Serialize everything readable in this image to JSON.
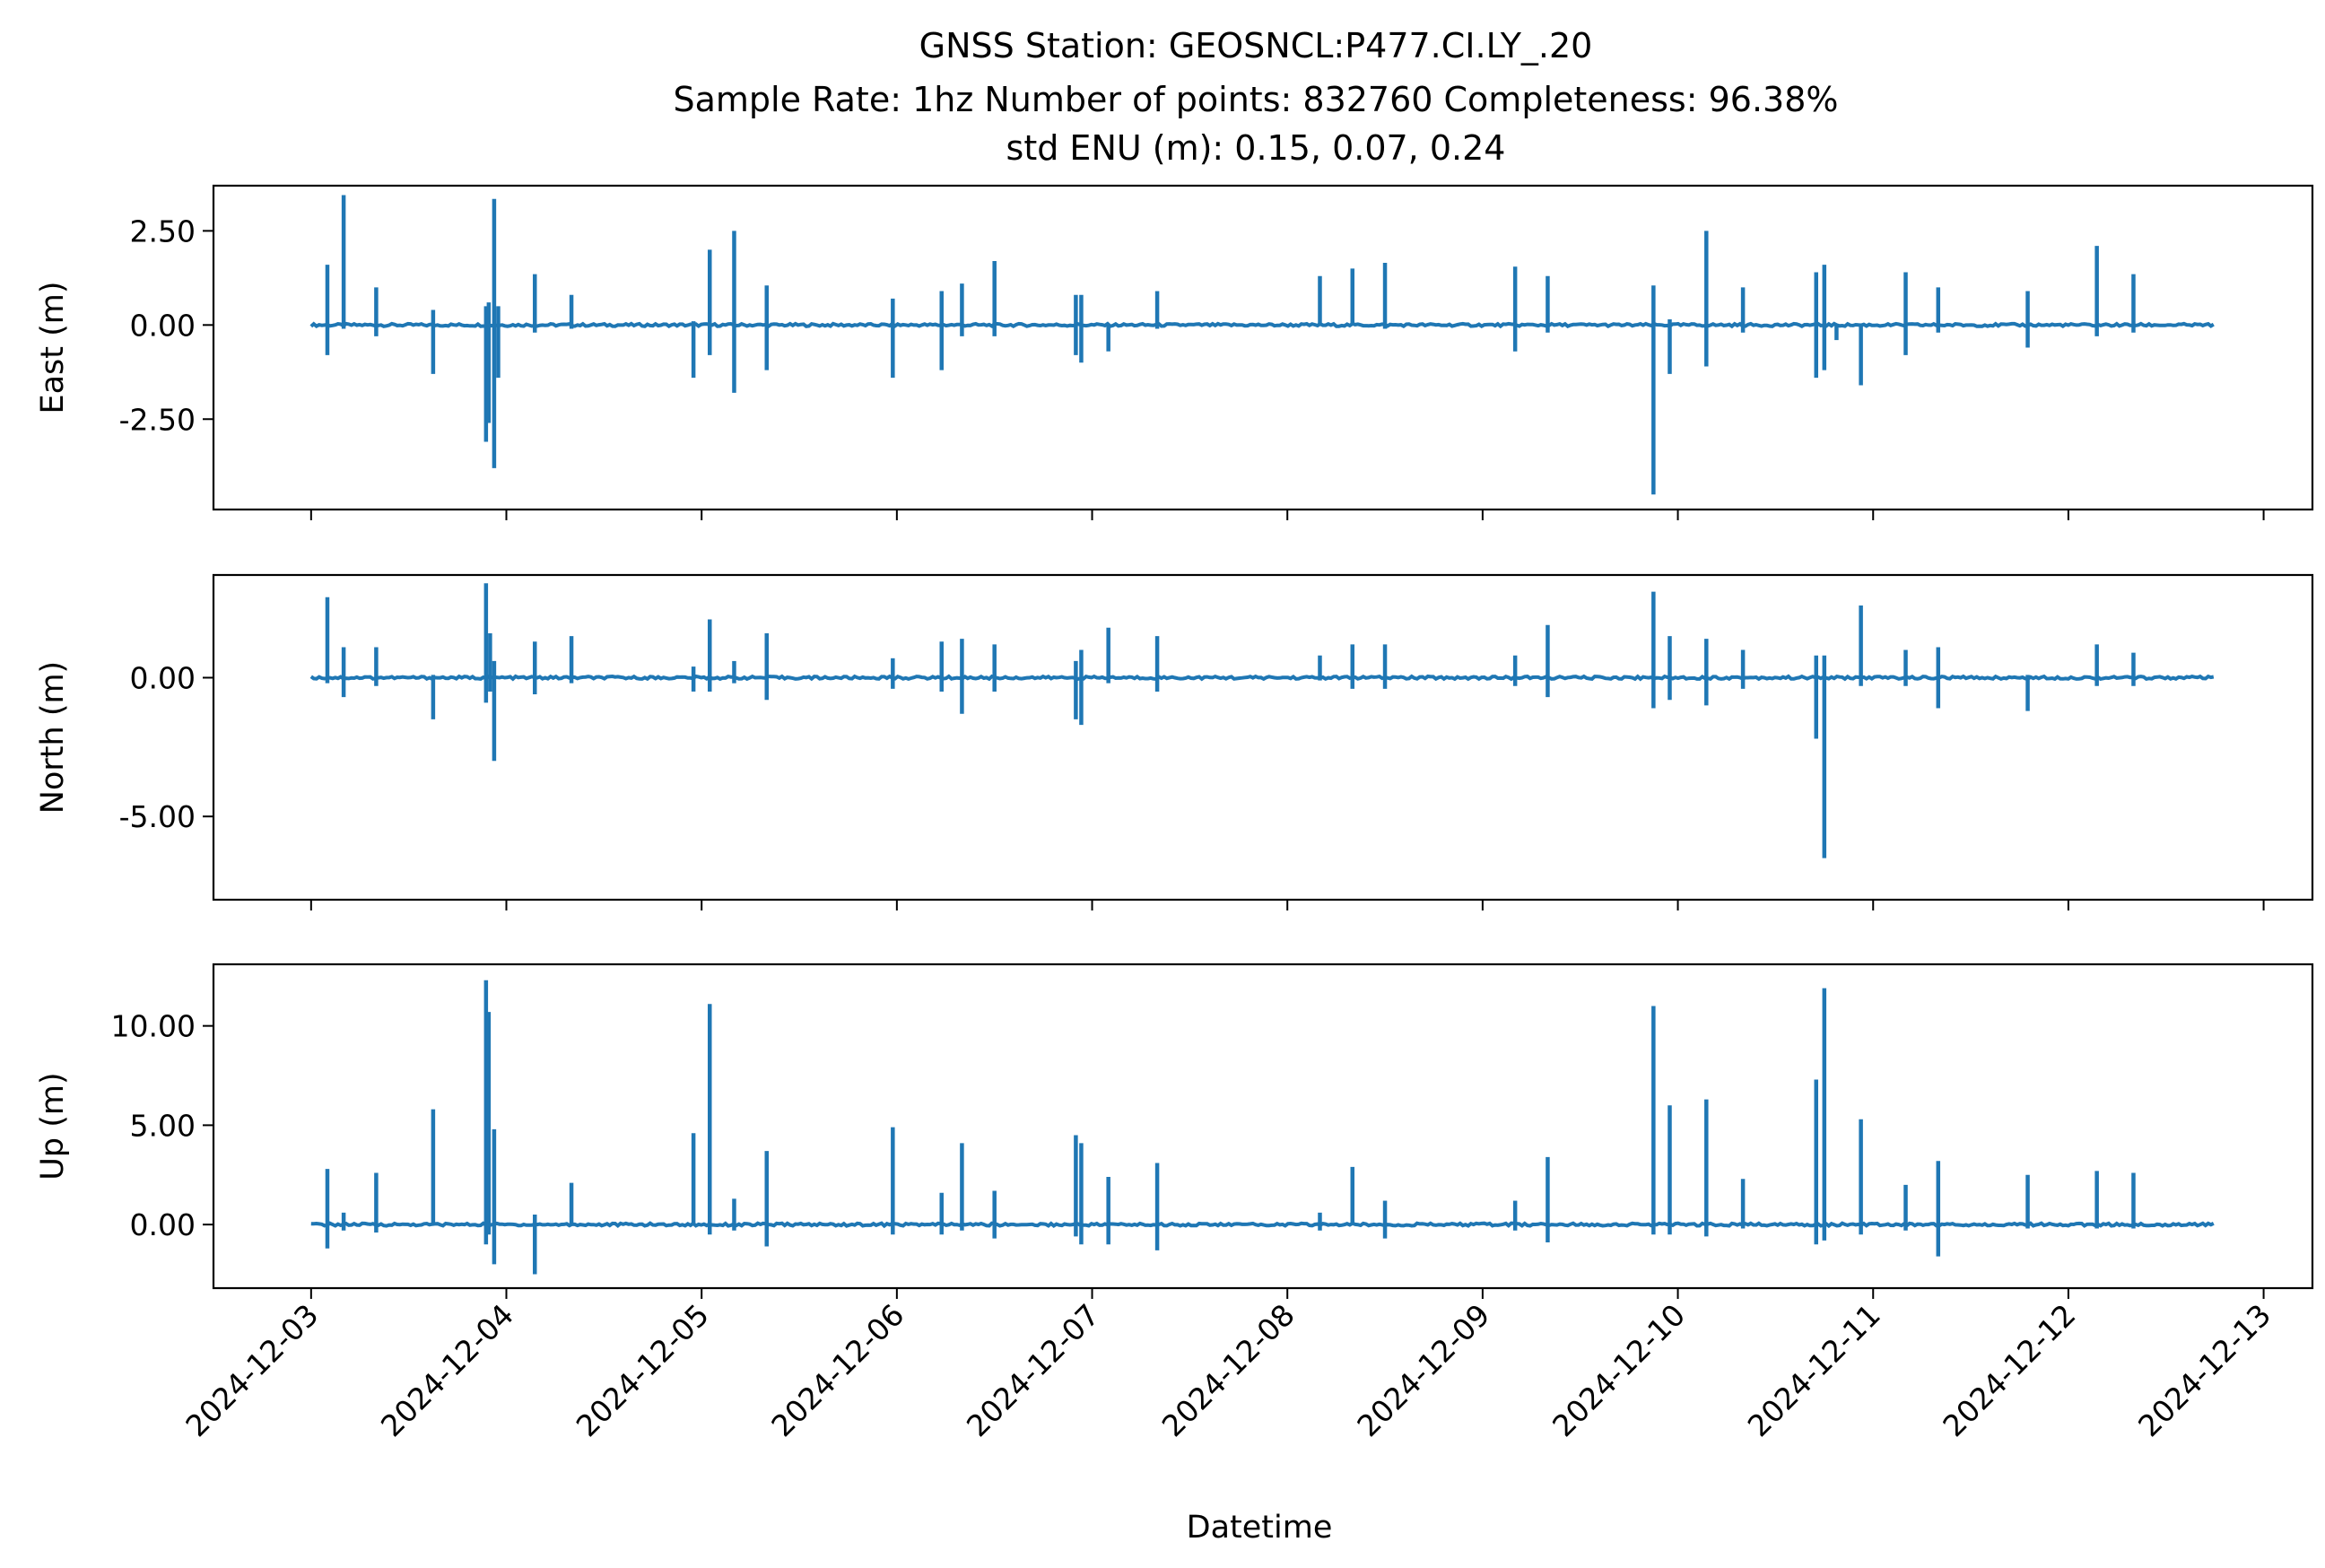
{
  "title_lines": [
    "GNSS Station: GEOSNCL:P477.CI.LY_.20",
    "Sample Rate: 1hz   Number of points: 832760    Completeness:  96.38%",
    "std ENU (m):  0.15, 0.07, 0.24"
  ],
  "colors": {
    "series": "#1f77b4",
    "axes": "#000000",
    "background": "#ffffff"
  },
  "chart_data": {
    "type": "line",
    "xlabel": "Datetime",
    "x_ticks": [
      "2024-12-03",
      "2024-12-04",
      "2024-12-05",
      "2024-12-06",
      "2024-12-07",
      "2024-12-08",
      "2024-12-09",
      "2024-12-10",
      "2024-12-11",
      "2024-12-12",
      "2024-12-13"
    ],
    "xlim": [
      "2024-12-02T12:00",
      "2024-12-13T06:00"
    ],
    "data_range": [
      "2024-12-03T00:00",
      "2024-12-12T18:00"
    ],
    "grid": false,
    "legend": "none",
    "panels": [
      {
        "ylabel": "East (m)",
        "ylim": [
          -4.9,
          3.7
        ],
        "y_ticks": [
          2.5,
          0.0,
          -2.5
        ],
        "y_tick_labels": [
          "2.50",
          "0.00",
          "-2.50"
        ],
        "spikes": [
          [
            "2024-12-03T02:00",
            1.6,
            -0.8
          ],
          [
            "2024-12-03T04:00",
            3.45,
            -0.1
          ],
          [
            "2024-12-03T08:00",
            1.0,
            -0.3
          ],
          [
            "2024-12-03T15:00",
            0.4,
            -1.3
          ],
          [
            "2024-12-03T21:30",
            0.5,
            -3.1
          ],
          [
            "2024-12-03T21:50",
            0.6,
            -2.6
          ],
          [
            "2024-12-03T22:30",
            3.35,
            -3.8
          ],
          [
            "2024-12-03T23:00",
            0.5,
            -1.4
          ],
          [
            "2024-12-04T03:30",
            1.35,
            -0.2
          ],
          [
            "2024-12-04T08:00",
            0.8,
            -0.1
          ],
          [
            "2024-12-04T23:00",
            0.1,
            -1.4
          ],
          [
            "2024-12-05T01:00",
            2.0,
            -0.8
          ],
          [
            "2024-12-05T04:00",
            2.5,
            -1.8
          ],
          [
            "2024-12-05T08:00",
            1.05,
            -1.2
          ],
          [
            "2024-12-05T23:30",
            0.7,
            -1.4
          ],
          [
            "2024-12-06T05:30",
            0.9,
            -1.2
          ],
          [
            "2024-12-06T08:00",
            1.1,
            -0.3
          ],
          [
            "2024-12-06T12:00",
            1.7,
            -0.3
          ],
          [
            "2024-12-06T22:00",
            0.8,
            -0.8
          ],
          [
            "2024-12-06T22:40",
            0.8,
            -1.0
          ],
          [
            "2024-12-07T02:00",
            0.0,
            -0.7
          ],
          [
            "2024-12-07T08:00",
            0.9,
            -0.1
          ],
          [
            "2024-12-08T04:00",
            1.3,
            0.0
          ],
          [
            "2024-12-08T08:00",
            1.5,
            0.0
          ],
          [
            "2024-12-08T12:00",
            1.65,
            -0.1
          ],
          [
            "2024-12-09T04:00",
            1.55,
            -0.7
          ],
          [
            "2024-12-09T08:00",
            1.3,
            -0.2
          ],
          [
            "2024-12-09T21:00",
            1.05,
            -4.5
          ],
          [
            "2024-12-09T23:00",
            0.15,
            -1.3
          ],
          [
            "2024-12-10T03:30",
            2.5,
            -1.1
          ],
          [
            "2024-12-10T08:00",
            1.0,
            -0.2
          ],
          [
            "2024-12-10T17:00",
            1.4,
            -1.4
          ],
          [
            "2024-12-10T18:00",
            1.6,
            -1.2
          ],
          [
            "2024-12-10T19:30",
            0.0,
            -0.4
          ],
          [
            "2024-12-10T22:30",
            0.0,
            -1.6
          ],
          [
            "2024-12-11T04:00",
            1.4,
            -0.8
          ],
          [
            "2024-12-11T08:00",
            1.0,
            -0.2
          ],
          [
            "2024-12-11T19:00",
            0.9,
            -0.6
          ],
          [
            "2024-12-12T03:30",
            2.1,
            -0.3
          ],
          [
            "2024-12-12T08:00",
            1.35,
            -0.2
          ]
        ]
      },
      {
        "ylabel": "North (m)",
        "ylim": [
          -8.0,
          3.7
        ],
        "y_ticks": [
          0.0,
          -5.0
        ],
        "y_tick_labels": [
          "0.00",
          "-5.00"
        ],
        "spikes": [
          [
            "2024-12-03T02:00",
            2.9,
            -0.2
          ],
          [
            "2024-12-03T04:00",
            1.1,
            -0.7
          ],
          [
            "2024-12-03T08:00",
            1.1,
            -0.3
          ],
          [
            "2024-12-03T15:00",
            0.1,
            -1.5
          ],
          [
            "2024-12-03T21:30",
            3.4,
            -0.9
          ],
          [
            "2024-12-03T22:00",
            1.6,
            -0.5
          ],
          [
            "2024-12-03T22:30",
            0.6,
            -3.0
          ],
          [
            "2024-12-04T03:30",
            1.3,
            -0.6
          ],
          [
            "2024-12-04T08:00",
            1.5,
            -0.2
          ],
          [
            "2024-12-04T23:00",
            0.4,
            -0.5
          ],
          [
            "2024-12-05T01:00",
            2.1,
            -0.5
          ],
          [
            "2024-12-05T04:00",
            0.6,
            -0.2
          ],
          [
            "2024-12-05T08:00",
            1.6,
            -0.8
          ],
          [
            "2024-12-05T23:30",
            0.7,
            -0.4
          ],
          [
            "2024-12-06T05:30",
            1.3,
            -0.5
          ],
          [
            "2024-12-06T08:00",
            1.4,
            -1.3
          ],
          [
            "2024-12-06T12:00",
            1.2,
            -0.5
          ],
          [
            "2024-12-06T22:00",
            0.6,
            -1.5
          ],
          [
            "2024-12-06T22:40",
            1.0,
            -1.7
          ],
          [
            "2024-12-07T02:00",
            1.8,
            -0.2
          ],
          [
            "2024-12-07T08:00",
            1.5,
            -0.5
          ],
          [
            "2024-12-08T04:00",
            0.8,
            -0.1
          ],
          [
            "2024-12-08T08:00",
            1.2,
            -0.4
          ],
          [
            "2024-12-08T12:00",
            1.2,
            -0.4
          ],
          [
            "2024-12-09T04:00",
            0.8,
            -0.3
          ],
          [
            "2024-12-09T08:00",
            1.9,
            -0.7
          ],
          [
            "2024-12-09T21:00",
            3.1,
            -1.1
          ],
          [
            "2024-12-09T23:00",
            1.5,
            -0.8
          ],
          [
            "2024-12-10T03:30",
            1.4,
            -1.0
          ],
          [
            "2024-12-10T08:00",
            1.0,
            -0.4
          ],
          [
            "2024-12-10T17:00",
            0.8,
            -2.2
          ],
          [
            "2024-12-10T18:00",
            0.8,
            -6.5
          ],
          [
            "2024-12-10T22:30",
            2.6,
            -0.3
          ],
          [
            "2024-12-11T04:00",
            1.0,
            -0.3
          ],
          [
            "2024-12-11T08:00",
            1.1,
            -1.1
          ],
          [
            "2024-12-11T19:00",
            0.1,
            -1.2
          ],
          [
            "2024-12-12T03:30",
            1.2,
            -0.3
          ],
          [
            "2024-12-12T08:00",
            0.9,
            -0.3
          ]
        ]
      },
      {
        "ylabel": "Up (m)",
        "ylim": [
          -3.2,
          13.1
        ],
        "y_ticks": [
          10.0,
          5.0,
          0.0
        ],
        "y_tick_labels": [
          "10.00",
          "5.00",
          "0.00"
        ],
        "spikes": [
          [
            "2024-12-03T02:00",
            2.8,
            -1.2
          ],
          [
            "2024-12-03T04:00",
            0.6,
            -0.3
          ],
          [
            "2024-12-03T08:00",
            2.6,
            -0.4
          ],
          [
            "2024-12-03T15:00",
            5.8,
            0.0
          ],
          [
            "2024-12-03T21:30",
            12.3,
            -1.0
          ],
          [
            "2024-12-03T21:50",
            10.7,
            -0.5
          ],
          [
            "2024-12-03T22:30",
            4.8,
            -2.0
          ],
          [
            "2024-12-04T03:30",
            0.5,
            -2.5
          ],
          [
            "2024-12-04T08:00",
            2.1,
            0.0
          ],
          [
            "2024-12-04T23:00",
            4.6,
            0.0
          ],
          [
            "2024-12-05T01:00",
            11.1,
            -0.5
          ],
          [
            "2024-12-05T04:00",
            1.3,
            -0.3
          ],
          [
            "2024-12-05T08:00",
            3.7,
            -1.1
          ],
          [
            "2024-12-05T23:30",
            4.9,
            -0.5
          ],
          [
            "2024-12-06T05:30",
            1.6,
            -0.5
          ],
          [
            "2024-12-06T08:00",
            4.1,
            -0.3
          ],
          [
            "2024-12-06T12:00",
            1.7,
            -0.7
          ],
          [
            "2024-12-06T22:00",
            4.5,
            -0.6
          ],
          [
            "2024-12-06T22:40",
            4.1,
            -1.0
          ],
          [
            "2024-12-07T02:00",
            2.4,
            -1.0
          ],
          [
            "2024-12-07T08:00",
            3.1,
            -1.3
          ],
          [
            "2024-12-08T04:00",
            0.6,
            -0.3
          ],
          [
            "2024-12-08T08:00",
            2.9,
            0.0
          ],
          [
            "2024-12-08T12:00",
            1.2,
            -0.7
          ],
          [
            "2024-12-09T04:00",
            1.2,
            -0.3
          ],
          [
            "2024-12-09T08:00",
            3.4,
            -0.9
          ],
          [
            "2024-12-09T21:00",
            11.0,
            -0.5
          ],
          [
            "2024-12-09T23:00",
            6.0,
            -0.5
          ],
          [
            "2024-12-10T03:30",
            6.3,
            -0.6
          ],
          [
            "2024-12-10T08:00",
            2.3,
            -0.2
          ],
          [
            "2024-12-10T17:00",
            7.3,
            -1.0
          ],
          [
            "2024-12-10T18:00",
            11.9,
            -0.8
          ],
          [
            "2024-12-10T22:30",
            5.3,
            -0.5
          ],
          [
            "2024-12-11T04:00",
            2.0,
            -0.3
          ],
          [
            "2024-12-11T08:00",
            3.2,
            -1.6
          ],
          [
            "2024-12-11T19:00",
            2.5,
            -0.2
          ],
          [
            "2024-12-12T03:30",
            2.7,
            -0.2
          ],
          [
            "2024-12-12T08:00",
            2.6,
            -0.2
          ]
        ]
      }
    ]
  }
}
